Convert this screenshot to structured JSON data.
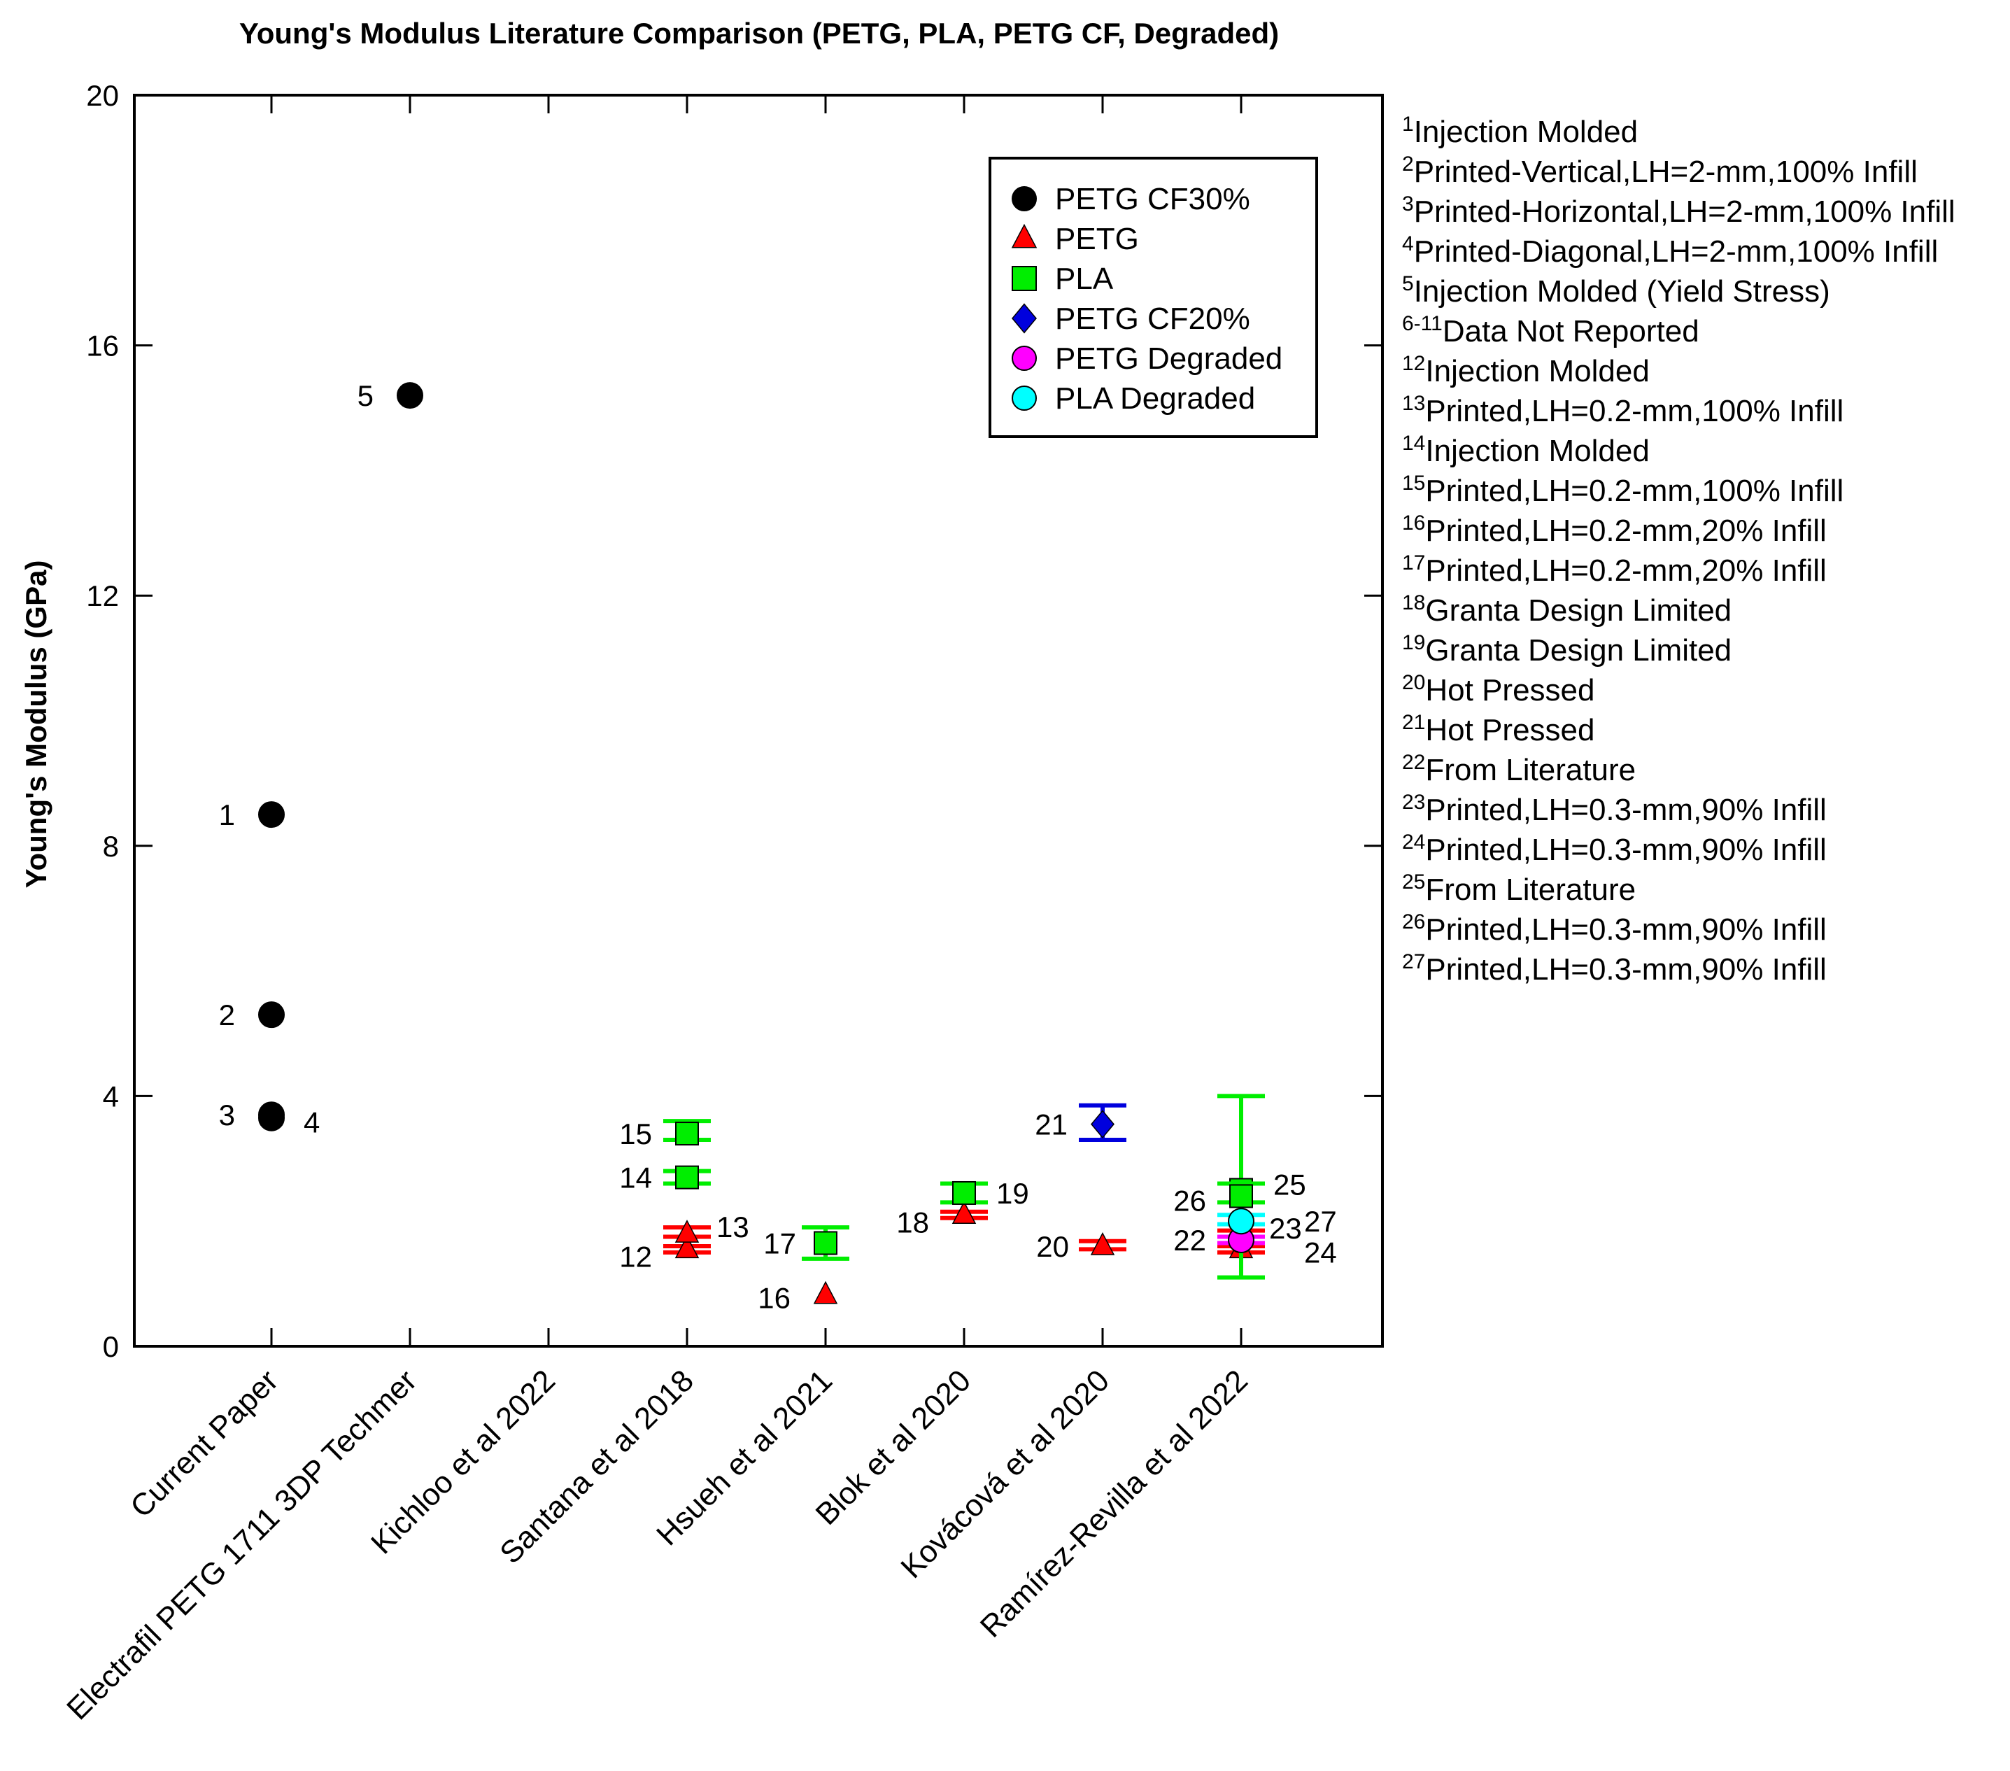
{
  "chart_data": {
    "type": "scatter",
    "title": "Young's Modulus Literature Comparison (PETG, PLA, PETG CF, Degraded)",
    "xlabel": "",
    "ylabel": "Young's Modulus (GPa)",
    "ylim": [
      0,
      20
    ],
    "yticks": [
      0,
      4,
      8,
      12,
      16,
      20
    ],
    "grid": false,
    "legend_position": "top-right",
    "categories": [
      "Current Paper",
      "Electrafil PETG 1711 3DP Techmer",
      "Kichloo et al 2022",
      "Santana et al 2018",
      "Hsueh et al 2021",
      "Blok et al 2020",
      "Kovácová et al 2020",
      "Ramírez-Revilla et al 2022"
    ],
    "series": [
      {
        "name": "PETG CF30%",
        "color": "#000000",
        "marker": "circle",
        "points": [
          {
            "label": "1",
            "cat": 0,
            "y": 8.5
          },
          {
            "label": "2",
            "cat": 0,
            "y": 5.3
          },
          {
            "label": "3",
            "cat": 0,
            "y": 3.7
          },
          {
            "label": "4",
            "cat": 0,
            "y": 3.65
          },
          {
            "label": "5",
            "cat": 1,
            "y": 15.2
          }
        ]
      },
      {
        "name": "PETG",
        "color": "#ff0000",
        "marker": "triangle",
        "points": [
          {
            "label": "12",
            "cat": 3,
            "y": 1.55,
            "err": [
              1.5,
              1.6
            ]
          },
          {
            "label": "13",
            "cat": 3,
            "y": 1.8,
            "err": [
              1.75,
              1.9
            ]
          },
          {
            "label": "16",
            "cat": 4,
            "y": 0.82
          },
          {
            "label": "18",
            "cat": 5,
            "y": 2.1,
            "err": [
              2.05,
              2.15
            ]
          },
          {
            "label": "20",
            "cat": 6,
            "y": 1.6,
            "err": [
              1.55,
              1.68
            ]
          },
          {
            "label": "23",
            "cat": 7,
            "y": 1.8,
            "err": [
              1.75,
              1.85
            ]
          },
          {
            "label": "24",
            "cat": 7,
            "y": 1.55,
            "err": [
              1.5,
              1.6
            ]
          }
        ]
      },
      {
        "name": "PLA",
        "color": "#00ee00",
        "marker": "square",
        "points": [
          {
            "label": "14",
            "cat": 3,
            "y": 2.7,
            "err": [
              2.6,
              2.8
            ]
          },
          {
            "label": "15",
            "cat": 3,
            "y": 3.4,
            "err": [
              3.3,
              3.6
            ]
          },
          {
            "label": "17",
            "cat": 4,
            "y": 1.65,
            "err": [
              1.4,
              1.9
            ]
          },
          {
            "label": "19",
            "cat": 5,
            "y": 2.45,
            "err": [
              2.3,
              2.6
            ]
          },
          {
            "label": "25",
            "cat": 7,
            "y": 2.5,
            "err": [
              1.1,
              4.0
            ]
          },
          {
            "label": "26",
            "cat": 7,
            "y": 2.4,
            "err": [
              2.3,
              2.6
            ]
          }
        ]
      },
      {
        "name": "PETG CF20%",
        "color": "#0000dd",
        "marker": "diamond",
        "points": [
          {
            "label": "21",
            "cat": 6,
            "y": 3.55,
            "err": [
              3.3,
              3.85
            ]
          }
        ]
      },
      {
        "name": "PETG Degraded",
        "color": "#ff00ff",
        "marker": "circle",
        "points": [
          {
            "label": "22",
            "cat": 7,
            "y": 1.7,
            "err": [
              1.65,
              1.75
            ]
          }
        ]
      },
      {
        "name": "PLA Degraded",
        "color": "#00ffff",
        "marker": "circle",
        "points": [
          {
            "label": "27",
            "cat": 7,
            "y": 2.0,
            "err": [
              1.95,
              2.1
            ]
          }
        ]
      }
    ],
    "notes": [
      {
        "num": "1",
        "text": "Injection Molded"
      },
      {
        "num": "2",
        "text": "Printed-Vertical,LH=2-mm,100% Infill"
      },
      {
        "num": "3",
        "text": "Printed-Horizontal,LH=2-mm,100% Infill"
      },
      {
        "num": "4",
        "text": "Printed-Diagonal,LH=2-mm,100% Infill"
      },
      {
        "num": "5",
        "text": "Injection Molded (Yield Stress)"
      },
      {
        "num": "6-11",
        "text": "Data Not Reported"
      },
      {
        "num": "12",
        "text": "Injection Molded"
      },
      {
        "num": "13",
        "text": "Printed,LH=0.2-mm,100% Infill"
      },
      {
        "num": "14",
        "text": "Injection Molded"
      },
      {
        "num": "15",
        "text": "Printed,LH=0.2-mm,100% Infill"
      },
      {
        "num": "16",
        "text": "Printed,LH=0.2-mm,20% Infill"
      },
      {
        "num": "17",
        "text": "Printed,LH=0.2-mm,20% Infill"
      },
      {
        "num": "18",
        "text": "Granta Design Limited"
      },
      {
        "num": "19",
        "text": "Granta Design Limited"
      },
      {
        "num": "20",
        "text": "Hot Pressed"
      },
      {
        "num": "21",
        "text": "Hot Pressed"
      },
      {
        "num": "22",
        "text": "From Literature"
      },
      {
        "num": "23",
        "text": "Printed,LH=0.3-mm,90% Infill"
      },
      {
        "num": "24",
        "text": "Printed,LH=0.3-mm,90% Infill"
      },
      {
        "num": "25",
        "text": "From Literature"
      },
      {
        "num": "26",
        "text": "Printed,LH=0.3-mm,90% Infill"
      },
      {
        "num": "27",
        "text": "Printed,LH=0.3-mm,90% Infill"
      }
    ]
  }
}
